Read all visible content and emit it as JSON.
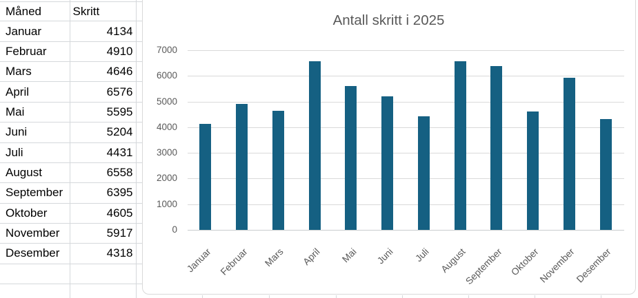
{
  "table": {
    "headers": [
      "Måned",
      "Skritt"
    ],
    "rows": [
      {
        "month": "Januar",
        "steps": 4134
      },
      {
        "month": "Februar",
        "steps": 4910
      },
      {
        "month": "Mars",
        "steps": 4646
      },
      {
        "month": "April",
        "steps": 6576
      },
      {
        "month": "Mai",
        "steps": 5595
      },
      {
        "month": "Juni",
        "steps": 5204
      },
      {
        "month": "Juli",
        "steps": 4431
      },
      {
        "month": "August",
        "steps": 6558
      },
      {
        "month": "September",
        "steps": 6395
      },
      {
        "month": "Oktober",
        "steps": 4605
      },
      {
        "month": "November",
        "steps": 5917
      },
      {
        "month": "Desember",
        "steps": 4318
      }
    ],
    "empty_trailing_rows": 2
  },
  "chart_data": {
    "type": "bar",
    "title": "Antall skritt i 2025",
    "categories": [
      "Januar",
      "Februar",
      "Mars",
      "April",
      "Mai",
      "Juni",
      "Juli",
      "August",
      "September",
      "Oktober",
      "November",
      "Desember"
    ],
    "values": [
      4134,
      4910,
      4646,
      6576,
      5595,
      5204,
      4431,
      6558,
      6395,
      4605,
      5917,
      4318
    ],
    "xlabel": "",
    "ylabel": "",
    "ylim": [
      0,
      7000
    ],
    "ytick_step": 1000,
    "ytick_labels": [
      "0",
      "1000",
      "2000",
      "3000",
      "4000",
      "5000",
      "6000",
      "7000"
    ],
    "grid": true,
    "legend": false,
    "x_label_rotation_deg": 45,
    "bar_color": "#156082"
  },
  "colors": {
    "bar": "#156082",
    "chart_text": "#595959",
    "gridline": "#D9D9D9",
    "axis_line": "#C9CCCE",
    "chart_border": "#D9D9D9",
    "sheet_gridline": "#D5D8DB",
    "table_text": "#000000",
    "background": "#FFFFFF"
  }
}
